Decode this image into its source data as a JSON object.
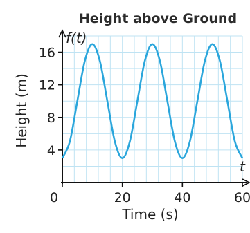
{
  "chart_data": {
    "type": "line",
    "title": "Height above Ground",
    "xlabel": "Time (s)",
    "ylabel": "Height (m)",
    "function_label": "f(t)",
    "x_axis_symbol": "t",
    "xlim": [
      0,
      60
    ],
    "ylim": [
      0,
      18
    ],
    "x_tick_labels": [
      "0",
      "20",
      "40",
      "60"
    ],
    "x_tick_values": [
      0,
      20,
      40,
      60
    ],
    "y_tick_labels": [
      "4",
      "8",
      "12",
      "16"
    ],
    "y_tick_values": [
      4,
      8,
      12,
      16
    ],
    "grid": true,
    "series": [
      {
        "color": "#2aa6dc",
        "x": [
          0,
          2.5,
          5,
          7.5,
          10,
          12.5,
          15,
          17.5,
          20,
          22.5,
          25,
          27.5,
          30,
          32.5,
          35,
          37.5,
          40,
          42.5,
          45,
          47.5,
          50,
          52.5,
          55,
          57.5,
          60
        ],
        "values": [
          3,
          5.05,
          10,
          14.95,
          17,
          14.95,
          10,
          5.05,
          3,
          5.05,
          10,
          14.95,
          17,
          14.95,
          10,
          5.05,
          3,
          5.05,
          10,
          14.95,
          17,
          14.95,
          10,
          5.05,
          3
        ]
      }
    ]
  },
  "colors": {
    "grid": "#bfe3f3",
    "axis": "#111111",
    "series": "#2aa6dc"
  }
}
